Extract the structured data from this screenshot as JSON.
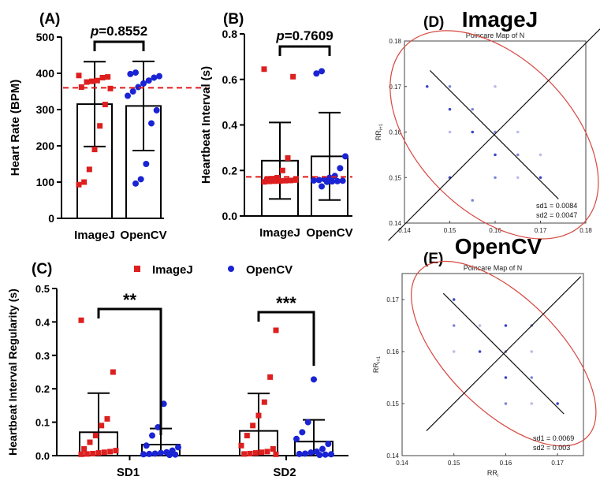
{
  "chart_data": [
    {
      "id": "A",
      "panel_label": "(A)",
      "type": "bar",
      "ylabel": "Heart Rate (BPM)",
      "ylim": [
        0,
        500
      ],
      "yticks": [
        "0",
        "100",
        "200",
        "300",
        "400",
        "500"
      ],
      "yticks_values": [
        0,
        100,
        200,
        300,
        400,
        500
      ],
      "categories": [
        "ImageJ",
        "OpenCV"
      ],
      "means": [
        315,
        310
      ],
      "sd": [
        117,
        123
      ],
      "reference_line": 360,
      "significance": "p=0.8552",
      "points": [
        [
          394,
          390,
          388,
          380,
          378,
          376,
          362,
          358,
          314,
          255,
          190,
          135,
          100,
          93
        ],
        [
          402,
          398,
          392,
          388,
          380,
          372,
          362,
          350,
          338,
          298,
          262,
          150,
          108,
          96
        ]
      ],
      "colors": [
        "#dd1f1f",
        "#1a24d4"
      ]
    },
    {
      "id": "B",
      "panel_label": "(B)",
      "type": "bar",
      "ylabel": "Heartbeat Interval (s)",
      "ylim": [
        0,
        0.8
      ],
      "yticks": [
        "0.0",
        "0.2",
        "0.4",
        "0.6",
        "0.8"
      ],
      "yticks_values": [
        0,
        0.2,
        0.4,
        0.6,
        0.8
      ],
      "categories": [
        "ImageJ",
        "OpenCV"
      ],
      "means": [
        0.243,
        0.262
      ],
      "sd": [
        0.168,
        0.192
      ],
      "reference_line": 0.172,
      "significance": "p=0.7609",
      "points": [
        [
          0.645,
          0.612,
          0.255,
          0.2,
          0.168,
          0.164,
          0.16,
          0.158,
          0.156,
          0.155,
          0.154,
          0.153,
          0.152,
          0.15
        ],
        [
          0.636,
          0.626,
          0.262,
          0.21,
          0.176,
          0.168,
          0.162,
          0.158,
          0.156,
          0.155,
          0.153,
          0.152,
          0.15,
          0.13
        ]
      ],
      "colors": [
        "#dd1f1f",
        "#1a24d4"
      ]
    },
    {
      "id": "C",
      "panel_label": "(C)",
      "type": "bar",
      "ylabel": "Heartbeat Interval Regularity (s)",
      "ylim": [
        0,
        0.5
      ],
      "yticks": [
        "0.0",
        "0.1",
        "0.2",
        "0.3",
        "0.4",
        "0.5"
      ],
      "yticks_values": [
        0,
        0.1,
        0.2,
        0.3,
        0.4,
        0.5
      ],
      "categories": [
        "SD1",
        "SD2"
      ],
      "series": [
        {
          "name": "ImageJ",
          "values": [
            0.07,
            0.074
          ],
          "sd": [
            0.117,
            0.112
          ],
          "points": [
            [
              0.405,
              0.25,
              0.11,
              0.09,
              0.06,
              0.04,
              0.02,
              0.015,
              0.012,
              0.01,
              0.008,
              0.006,
              0.005,
              0.004
            ],
            [
              0.375,
              0.235,
              0.16,
              0.12,
              0.09,
              0.06,
              0.03,
              0.02,
              0.012,
              0.01,
              0.008,
              0.006,
              0.005,
              0.004
            ]
          ]
        },
        {
          "name": "OpenCV",
          "values": [
            0.033,
            0.042
          ],
          "sd": [
            0.048,
            0.065
          ],
          "points": [
            [
              0.155,
              0.085,
              0.06,
              0.03,
              0.025,
              0.015,
              0.01,
              0.008,
              0.006,
              0.005,
              0.004,
              0.003,
              0.002
            ],
            [
              0.228,
              0.1,
              0.07,
              0.05,
              0.035,
              0.02,
              0.012,
              0.009,
              0.006,
              0.005,
              0.004,
              0.003,
              0.002
            ]
          ]
        }
      ],
      "legend": [
        "ImageJ",
        "OpenCV"
      ],
      "significance": [
        "**",
        "***"
      ],
      "colors": [
        "#dd1f1f",
        "#1a24d4"
      ]
    },
    {
      "id": "D",
      "panel_label": "(D)",
      "heading": "ImageJ",
      "type": "scatter",
      "title": "Poincare Map of N",
      "xlabel": "",
      "ylabel": "RR",
      "ylabel_sub": "i+1",
      "xlim": [
        0.14,
        0.18
      ],
      "ylim": [
        0.14,
        0.18
      ],
      "xticks": [
        "0.14",
        "0.15",
        "0.16",
        "0.17",
        "0.18"
      ],
      "xticks_values": [
        0.14,
        0.15,
        0.16,
        0.17,
        0.18
      ],
      "yticks": [
        "0.14",
        "0.15",
        "0.16",
        "0.17",
        "0.18"
      ],
      "yticks_values": [
        0.14,
        0.15,
        0.16,
        0.17,
        0.18
      ],
      "center": [
        0.1598,
        0.1594
      ],
      "sd1": 0.0084,
      "sd2": 0.0047,
      "sd1_label": "sd1 = 0.0084",
      "sd2_label": "sd2 = 0.0047",
      "points": [
        [
          0.145,
          0.17
        ],
        [
          0.15,
          0.17
        ],
        [
          0.16,
          0.17
        ],
        [
          0.15,
          0.165
        ],
        [
          0.155,
          0.165
        ],
        [
          0.15,
          0.16
        ],
        [
          0.155,
          0.16
        ],
        [
          0.16,
          0.16
        ],
        [
          0.165,
          0.16
        ],
        [
          0.16,
          0.155
        ],
        [
          0.165,
          0.155
        ],
        [
          0.17,
          0.155
        ],
        [
          0.15,
          0.15
        ],
        [
          0.16,
          0.15
        ],
        [
          0.165,
          0.15
        ],
        [
          0.17,
          0.15
        ],
        [
          0.155,
          0.145
        ]
      ]
    },
    {
      "id": "E",
      "panel_label": "(E)",
      "heading": "OpenCV",
      "type": "scatter",
      "title": "Poincare Map of N",
      "xlabel": "RR",
      "xlabel_sub": "i",
      "ylabel": "RR",
      "ylabel_sub": "i+1",
      "xlim": [
        0.14,
        0.175
      ],
      "ylim": [
        0.14,
        0.175
      ],
      "xticks": [
        "0.14",
        "0.15",
        "0.16",
        "0.17"
      ],
      "xticks_values": [
        0.14,
        0.15,
        0.16,
        0.17
      ],
      "yticks": [
        "0.14",
        "0.15",
        "0.16",
        "0.17"
      ],
      "yticks_values": [
        0.14,
        0.15,
        0.16,
        0.17
      ],
      "center": [
        0.1596,
        0.1596
      ],
      "sd1": 0.0069,
      "sd2": 0.003,
      "sd1_label": "sd1 = 0.0069",
      "sd2_label": "sd2 = 0.003",
      "points": [
        [
          0.15,
          0.17
        ],
        [
          0.15,
          0.165
        ],
        [
          0.155,
          0.165
        ],
        [
          0.16,
          0.165
        ],
        [
          0.165,
          0.165
        ],
        [
          0.15,
          0.16
        ],
        [
          0.155,
          0.16
        ],
        [
          0.16,
          0.16
        ],
        [
          0.165,
          0.16
        ],
        [
          0.16,
          0.155
        ],
        [
          0.165,
          0.155
        ],
        [
          0.165,
          0.15
        ],
        [
          0.17,
          0.15
        ],
        [
          0.16,
          0.15
        ]
      ]
    }
  ]
}
